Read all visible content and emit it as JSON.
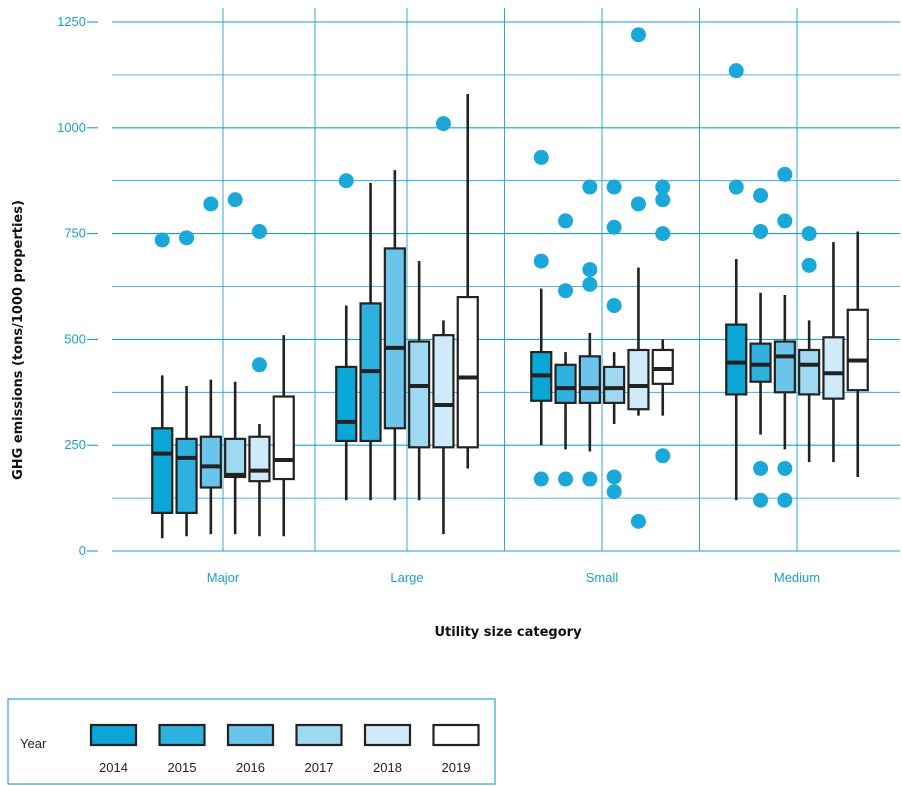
{
  "chart_data": {
    "type": "boxplot",
    "xlabel": "Utility size category",
    "ylabel": "GHG emissions (tons/1000 properties)",
    "ylim": [
      0,
      1250
    ],
    "yticks": [
      0,
      250,
      500,
      750,
      1000,
      1250
    ],
    "grid": true,
    "categories": [
      "Major",
      "Large",
      "Small",
      "Medium"
    ],
    "legend": {
      "placement": "bottom-left",
      "title": "Year"
    },
    "series": [
      {
        "name": "2014",
        "color": "#0aa6d6",
        "boxes": [
          {
            "category": "Major",
            "min": 30,
            "q1": 90,
            "median": 230,
            "q3": 290,
            "max": 415,
            "outliers": [
              735
            ]
          },
          {
            "category": "Large",
            "min": 120,
            "q1": 260,
            "median": 305,
            "q3": 435,
            "max": 580,
            "outliers": [
              875
            ]
          },
          {
            "category": "Small",
            "min": 250,
            "q1": 355,
            "median": 415,
            "q3": 470,
            "max": 620,
            "outliers": [
              170,
              685,
              930
            ]
          },
          {
            "category": "Medium",
            "min": 120,
            "q1": 370,
            "median": 445,
            "q3": 535,
            "max": 690,
            "outliers": [
              860,
              1135
            ]
          }
        ]
      },
      {
        "name": "2015",
        "color": "#2fb1e0",
        "boxes": [
          {
            "category": "Major",
            "min": 35,
            "q1": 90,
            "median": 220,
            "q3": 265,
            "max": 390,
            "outliers": [
              740
            ]
          },
          {
            "category": "Large",
            "min": 120,
            "q1": 260,
            "median": 425,
            "q3": 585,
            "max": 870,
            "outliers": []
          },
          {
            "category": "Small",
            "min": 240,
            "q1": 350,
            "median": 385,
            "q3": 440,
            "max": 470,
            "outliers": [
              170,
              615,
              780
            ]
          },
          {
            "category": "Medium",
            "min": 275,
            "q1": 400,
            "median": 440,
            "q3": 490,
            "max": 610,
            "outliers": [
              120,
              195,
              755,
              840
            ]
          }
        ]
      },
      {
        "name": "2016",
        "color": "#6bc5ea",
        "boxes": [
          {
            "category": "Major",
            "min": 40,
            "q1": 150,
            "median": 200,
            "q3": 270,
            "max": 405,
            "outliers": [
              820
            ]
          },
          {
            "category": "Large",
            "min": 120,
            "q1": 290,
            "median": 480,
            "q3": 715,
            "max": 900,
            "outliers": []
          },
          {
            "category": "Small",
            "min": 235,
            "q1": 350,
            "median": 385,
            "q3": 460,
            "max": 515,
            "outliers": [
              170,
              630,
              665,
              860
            ]
          },
          {
            "category": "Medium",
            "min": 240,
            "q1": 375,
            "median": 460,
            "q3": 495,
            "max": 605,
            "outliers": [
              120,
              195,
              780,
              890
            ]
          }
        ]
      },
      {
        "name": "2017",
        "color": "#9fd8f1",
        "boxes": [
          {
            "category": "Major",
            "min": 40,
            "q1": 175,
            "median": 180,
            "q3": 265,
            "max": 400,
            "outliers": [
              830
            ]
          },
          {
            "category": "Large",
            "min": 120,
            "q1": 245,
            "median": 390,
            "q3": 495,
            "max": 685,
            "outliers": []
          },
          {
            "category": "Small",
            "min": 300,
            "q1": 350,
            "median": 385,
            "q3": 435,
            "max": 470,
            "outliers": [
              140,
              175,
              580,
              765,
              860
            ]
          },
          {
            "category": "Medium",
            "min": 210,
            "q1": 370,
            "median": 440,
            "q3": 475,
            "max": 545,
            "outliers": [
              675,
              750
            ]
          }
        ]
      },
      {
        "name": "2018",
        "color": "#cfeaf8",
        "boxes": [
          {
            "category": "Major",
            "min": 35,
            "q1": 165,
            "median": 190,
            "q3": 270,
            "max": 300,
            "outliers": [
              440,
              755
            ]
          },
          {
            "category": "Large",
            "min": 40,
            "q1": 245,
            "median": 345,
            "q3": 510,
            "max": 545,
            "outliers": [
              1010
            ]
          },
          {
            "category": "Small",
            "min": 320,
            "q1": 335,
            "median": 390,
            "q3": 475,
            "max": 670,
            "outliers": [
              70,
              820,
              1220
            ]
          },
          {
            "category": "Medium",
            "min": 210,
            "q1": 360,
            "median": 420,
            "q3": 505,
            "max": 730,
            "outliers": []
          }
        ]
      },
      {
        "name": "2019",
        "color": "#ffffff",
        "boxes": [
          {
            "category": "Major",
            "min": 35,
            "q1": 170,
            "median": 215,
            "q3": 365,
            "max": 510,
            "outliers": []
          },
          {
            "category": "Large",
            "min": 195,
            "q1": 245,
            "median": 410,
            "q3": 600,
            "max": 1080,
            "outliers": []
          },
          {
            "category": "Small",
            "min": 320,
            "q1": 395,
            "median": 430,
            "q3": 475,
            "max": 500,
            "outliers": [
              225,
              750,
              830,
              860
            ]
          },
          {
            "category": "Medium",
            "min": 175,
            "q1": 380,
            "median": 450,
            "q3": 570,
            "max": 755,
            "outliers": []
          }
        ]
      }
    ],
    "colors": {
      "outlier": "#1aa8d8",
      "grid": "#1aa0d0",
      "stroke": "#222222",
      "tick_text": "#1aa0d0"
    }
  }
}
